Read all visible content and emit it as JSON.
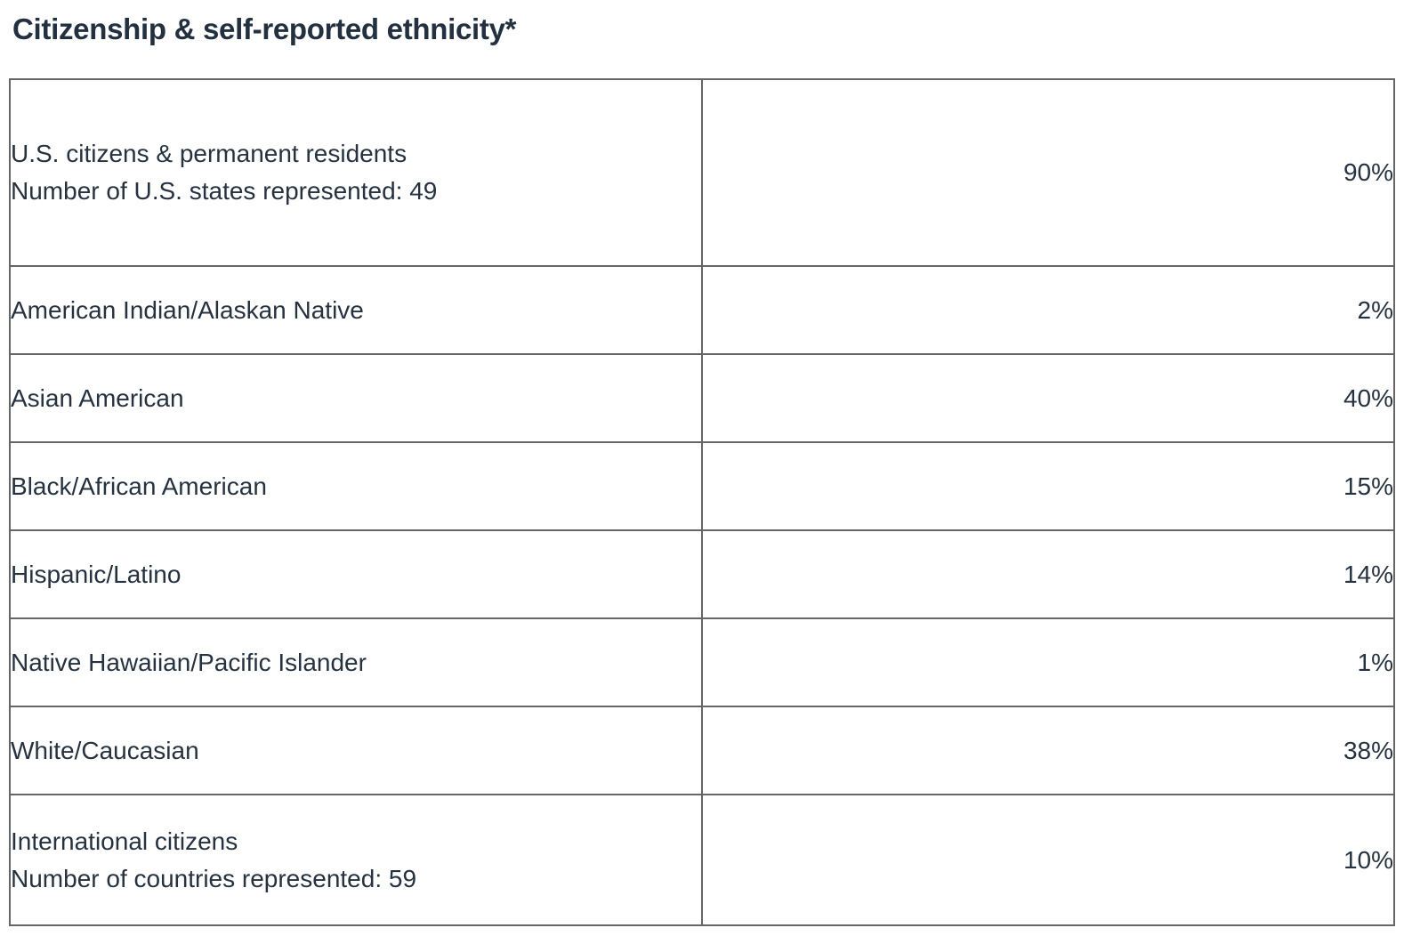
{
  "title": "Citizenship & self-reported ethnicity*",
  "colors": {
    "text": "#263240",
    "title_text": "#22303f",
    "border": "#666666",
    "background": "#ffffff"
  },
  "table": {
    "rows": [
      {
        "line1": "U.S. citizens & permanent residents",
        "line2": "Number of U.S. states represented: 49",
        "value": "90%"
      },
      {
        "line1": "American Indian/Alaskan Native",
        "line2": "",
        "value": "2%"
      },
      {
        "line1": "Asian American",
        "line2": "",
        "value": "40%"
      },
      {
        "line1": "Black/African American",
        "line2": "",
        "value": "15%"
      },
      {
        "line1": "Hispanic/Latino",
        "line2": "",
        "value": "14%"
      },
      {
        "line1": "Native Hawaiian/Pacific Islander",
        "line2": "",
        "value": "1%"
      },
      {
        "line1": "White/Caucasian",
        "line2": "",
        "value": "38%"
      },
      {
        "line1": "International citizens",
        "line2": "Number of countries represented: 59",
        "value": "10%"
      }
    ]
  },
  "chart_data": {
    "type": "table",
    "title": "Citizenship & self-reported ethnicity*",
    "categories": [
      "U.S. citizens & permanent residents",
      "American Indian/Alaskan Native",
      "Asian American",
      "Black/African American",
      "Hispanic/Latino",
      "Native Hawaiian/Pacific Islander",
      "White/Caucasian",
      "International citizens"
    ],
    "values": [
      90,
      2,
      40,
      15,
      14,
      1,
      38,
      10
    ],
    "unit": "%",
    "annotations": [
      "Number of U.S. states represented: 49",
      "Number of countries represented: 59"
    ]
  }
}
